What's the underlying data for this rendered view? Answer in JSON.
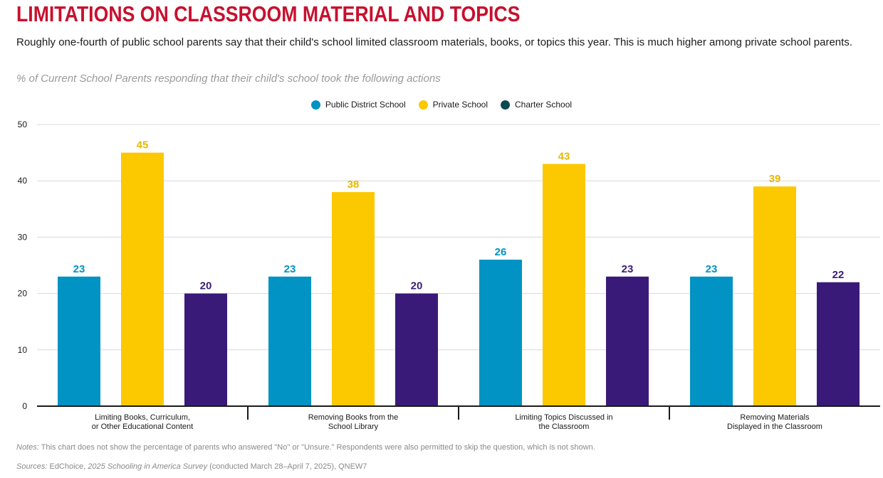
{
  "title": "LIMITATIONS ON CLASSROOM MATERIAL AND TOPICS",
  "subtitle": "Roughly one-fourth of public school parents say that their child's school limited classroom materials, books, or topics this year. This is much higher among private school parents.",
  "measure_label": "% of Current School Parents responding that their child's school took the following actions",
  "notes": {
    "label": "Notes:",
    "text": " This chart does not show the percentage of parents who answered \"No\" or \"Unsure.\" Respondents were also permitted to skip the question, which is not shown."
  },
  "sources": {
    "label": "Sources:",
    "org": " EdChoice, ",
    "survey": "2025 Schooling in America Survey",
    "rest": " (conducted March 28–April 7, 2025), QNEW7"
  },
  "colors": {
    "public": "#0093c4",
    "private": "#fcc800",
    "charter_bar": "#3a1a78",
    "charter_legend": "#0c4a52",
    "title": "#c8102e"
  },
  "chart_data": {
    "type": "bar",
    "title": "LIMITATIONS ON CLASSROOM MATERIAL AND TOPICS",
    "xlabel": "",
    "ylabel": "% of Current School Parents responding that their child's school took the following actions",
    "ylim": [
      0,
      50
    ],
    "yticks": [
      0,
      10,
      20,
      30,
      40,
      50
    ],
    "grid": true,
    "legend_position": "top-center",
    "categories": [
      [
        "Limiting Books, Curriculum,",
        "or Other Educational Content"
      ],
      [
        "Removing Books from the",
        "School Library"
      ],
      [
        "Limiting Topics Discussed in",
        "the Classroom"
      ],
      [
        "Removing Materials",
        "Displayed in the Classroom"
      ]
    ],
    "series": [
      {
        "name": "Public District School",
        "key": "public",
        "values": [
          23,
          23,
          26,
          23
        ]
      },
      {
        "name": "Private School",
        "key": "private",
        "values": [
          45,
          38,
          43,
          39
        ]
      },
      {
        "name": "Charter School",
        "key": "charter",
        "values": [
          20,
          20,
          23,
          22
        ]
      }
    ]
  }
}
